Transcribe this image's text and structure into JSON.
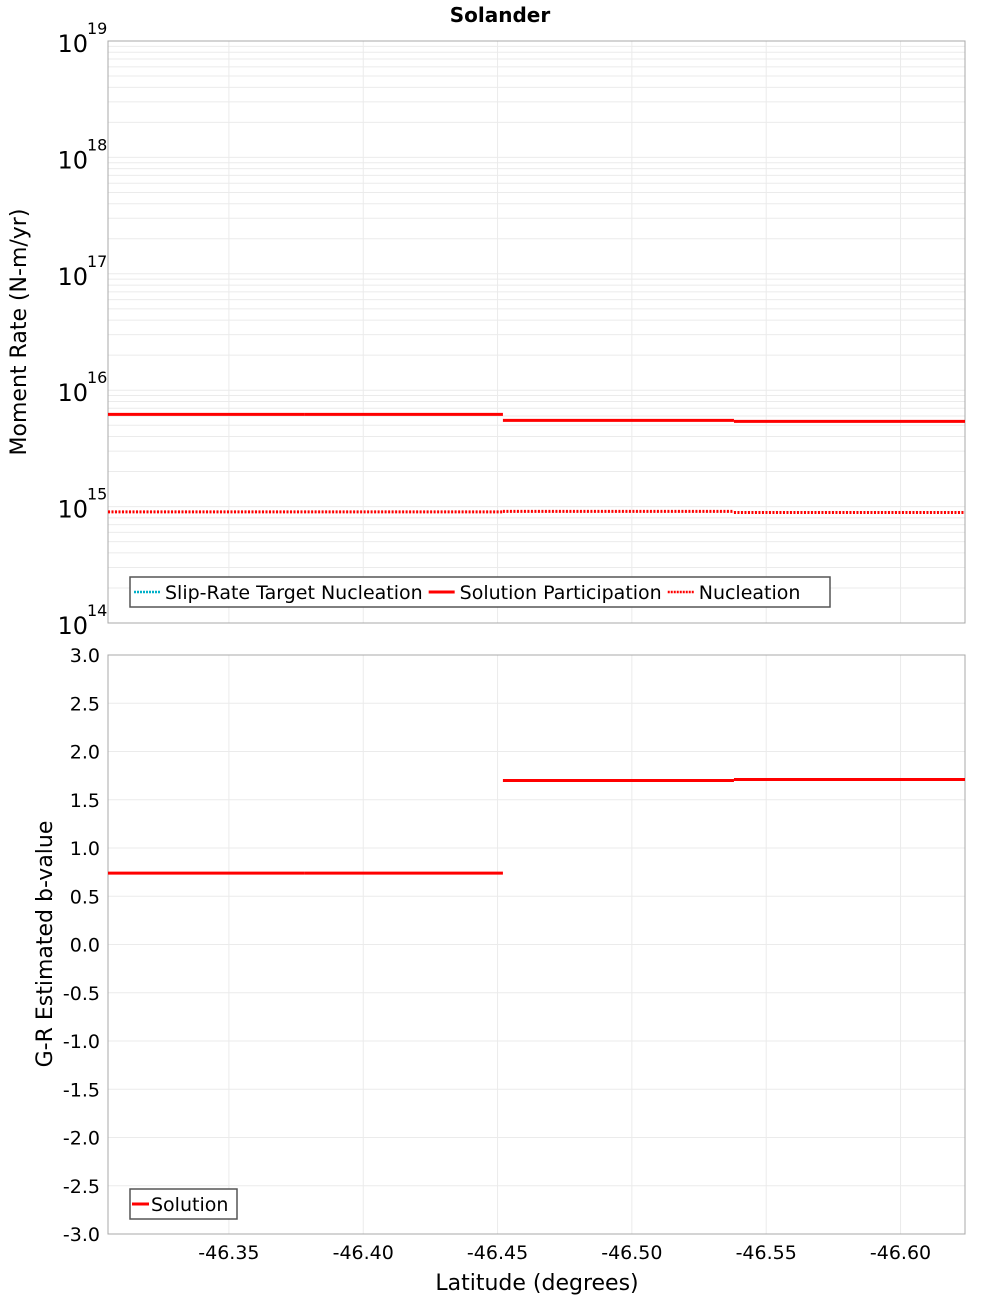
{
  "title": "Solander",
  "xaxis": {
    "label": "Latitude (degrees)",
    "range": [
      -46.305,
      -46.624
    ],
    "reversed": true,
    "ticks": [
      -46.35,
      -46.4,
      -46.45,
      -46.5,
      -46.55,
      -46.6
    ],
    "tick_labels": [
      "-46.35",
      "-46.40",
      "-46.45",
      "-46.50",
      "-46.55",
      "-46.60"
    ]
  },
  "colors": {
    "solution": "#ff0000",
    "nucleation": "#ff0000",
    "slip_rate_target": "#00b0c8",
    "grid": "#ebebeb",
    "frame": "#a8a8a8",
    "legend_border": "#555555"
  },
  "chart_data": [
    {
      "type": "line",
      "title": "Solander",
      "xlabel": "Latitude (degrees)",
      "ylabel": "Moment Rate (N-m/yr)",
      "yscale": "log",
      "ylim": [
        100000000000000.0,
        1e+19
      ],
      "ytick_exponents": [
        14,
        15,
        16,
        17,
        18,
        19
      ],
      "ytick_labels": [
        "10^14",
        "10^15",
        "10^16",
        "10^17",
        "10^18",
        "10^19"
      ],
      "grid": true,
      "legend_position": "lower-left",
      "legend": [
        "Slip-Rate Target Nucleation",
        "Solution Participation",
        "Nucleation"
      ],
      "series": [
        {
          "name": "Slip-Rate Target Nucleation",
          "style": "dotted",
          "color": "#00b0c8",
          "segments": []
        },
        {
          "name": "Solution Participation",
          "style": "solid",
          "color": "#ff0000",
          "segments": [
            {
              "x": [
                -46.305,
                -46.378
              ],
              "y": 6200000000000000.0
            },
            {
              "x": [
                -46.378,
                -46.452
              ],
              "y": 6200000000000000.0
            },
            {
              "x": [
                -46.452,
                -46.538
              ],
              "y": 5500000000000000.0
            },
            {
              "x": [
                -46.538,
                -46.624
              ],
              "y": 5400000000000000.0
            }
          ]
        },
        {
          "name": "Nucleation",
          "style": "dotted",
          "color": "#ff0000",
          "segments": [
            {
              "x": [
                -46.305,
                -46.378
              ],
              "y": 900000000000000.0
            },
            {
              "x": [
                -46.378,
                -46.452
              ],
              "y": 900000000000000.0
            },
            {
              "x": [
                -46.452,
                -46.538
              ],
              "y": 910000000000000.0
            },
            {
              "x": [
                -46.538,
                -46.624
              ],
              "y": 890000000000000.0
            }
          ]
        }
      ]
    },
    {
      "type": "line",
      "xlabel": "Latitude (degrees)",
      "ylabel": "G-R Estimated b-value",
      "ylim": [
        -3.0,
        3.0
      ],
      "yticks": [
        3.0,
        2.5,
        2.0,
        1.5,
        1.0,
        0.5,
        0.0,
        -0.5,
        -1.0,
        -1.5,
        -2.0,
        -2.5,
        -3.0
      ],
      "ytick_labels": [
        "3.0",
        "2.5",
        "2.0",
        "1.5",
        "1.0",
        "0.5",
        "0.0",
        "-0.5",
        "-1.0",
        "-1.5",
        "-2.0",
        "-2.5",
        "-3.0"
      ],
      "grid": true,
      "legend_position": "lower-left",
      "legend": [
        "Solution"
      ],
      "series": [
        {
          "name": "Solution",
          "style": "solid",
          "color": "#ff0000",
          "segments": [
            {
              "x": [
                -46.305,
                -46.378
              ],
              "y": 0.74
            },
            {
              "x": [
                -46.378,
                -46.452
              ],
              "y": 0.74
            },
            {
              "x": [
                -46.452,
                -46.538
              ],
              "y": 1.7
            },
            {
              "x": [
                -46.538,
                -46.624
              ],
              "y": 1.71
            }
          ]
        }
      ]
    }
  ]
}
